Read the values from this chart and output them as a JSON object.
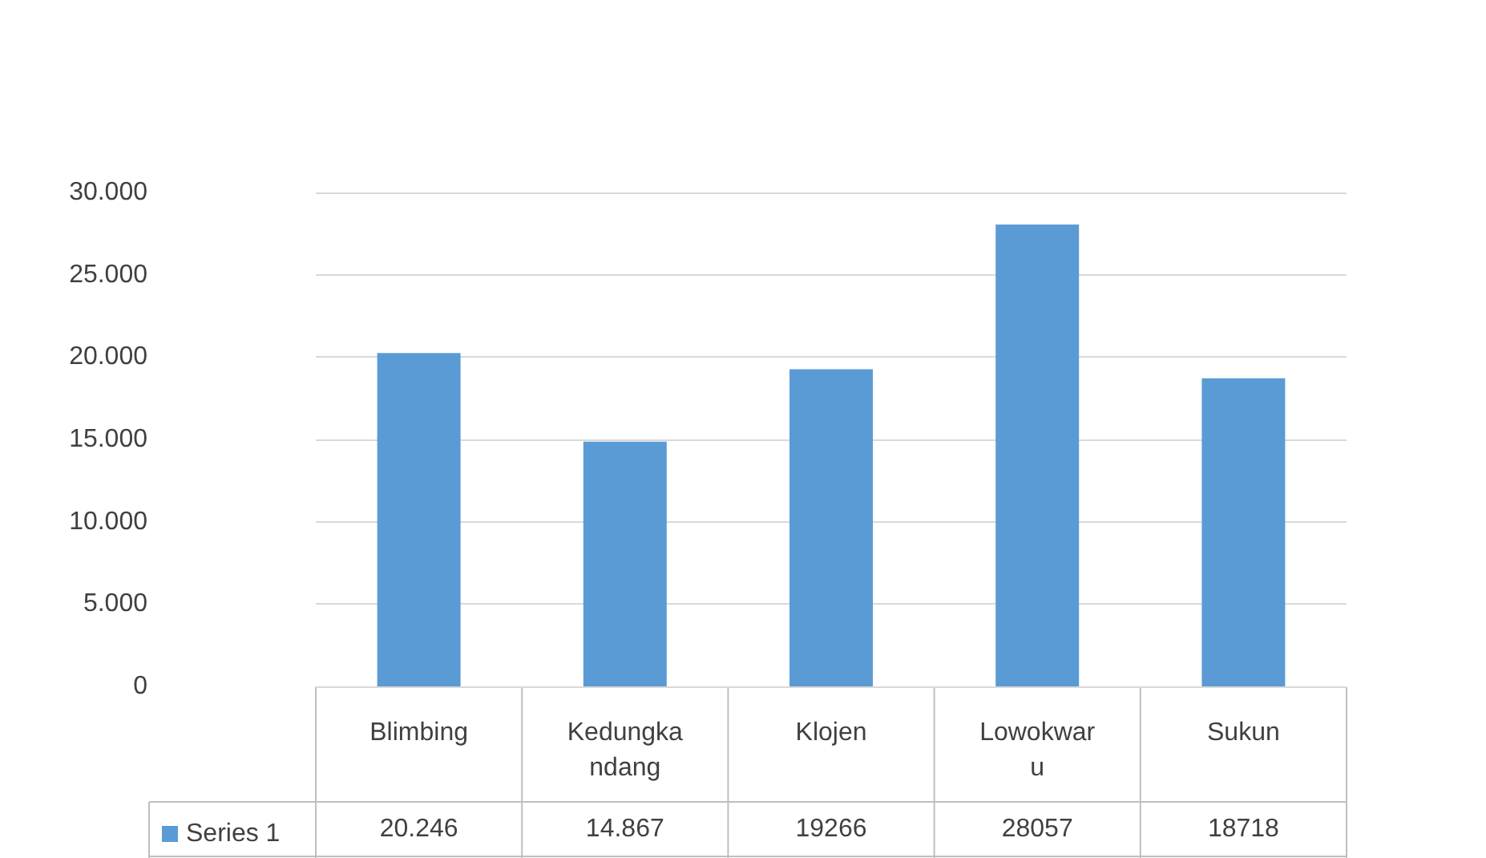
{
  "chart_data": {
    "type": "bar",
    "categories": [
      "Blimbing",
      "Kedungkandang",
      "Klojen",
      "Lowokwaru",
      "Sukun"
    ],
    "series": [
      {
        "name": "Series 1",
        "color": "#5b9bd5",
        "values": [
          20246,
          14867,
          19266,
          28057,
          18718
        ],
        "value_labels": [
          "20.246",
          "14.867",
          "19266",
          "28057",
          "18718"
        ]
      }
    ],
    "ylim": [
      0,
      30000
    ],
    "yticks": [
      {
        "value": 0,
        "label": "0"
      },
      {
        "value": 5000,
        "label": "5.000"
      },
      {
        "value": 10000,
        "label": "10.000"
      },
      {
        "value": 15000,
        "label": "15.000"
      },
      {
        "value": 20000,
        "label": "20.000"
      },
      {
        "value": 25000,
        "label": "25.000"
      },
      {
        "value": 30000,
        "label": "30.000"
      }
    ],
    "grid": "y",
    "legend": "bottom left"
  }
}
